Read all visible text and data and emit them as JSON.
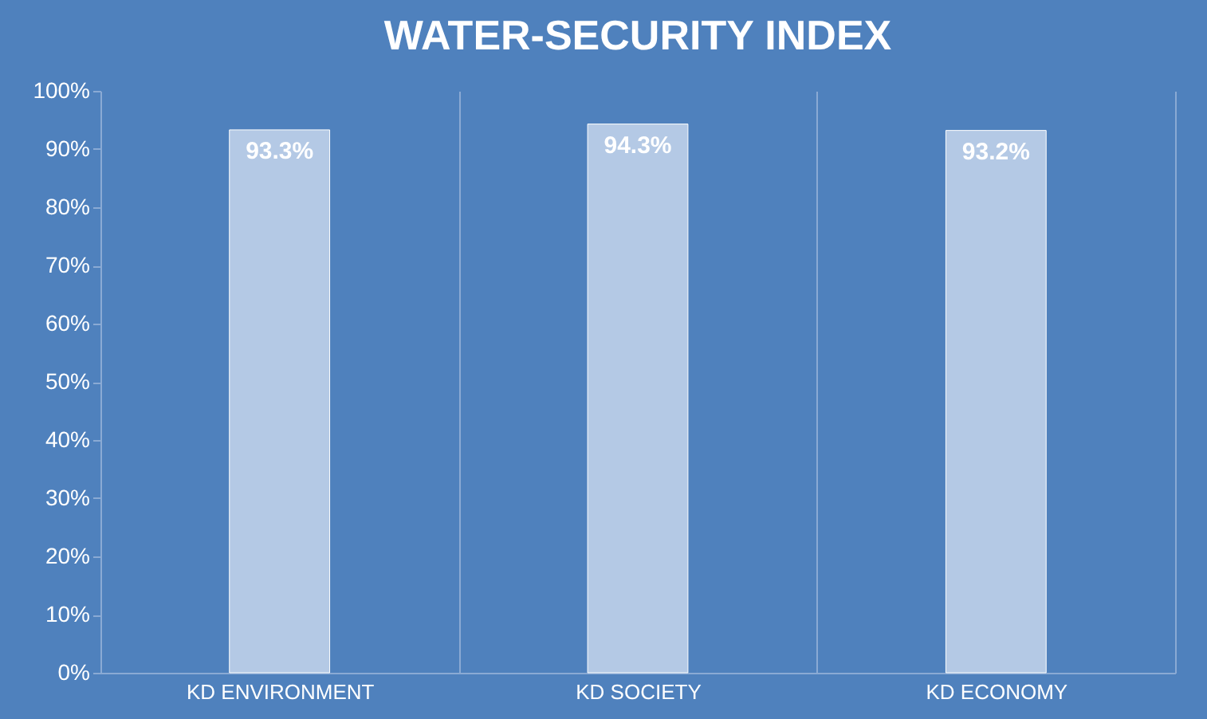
{
  "chart_data": {
    "type": "bar",
    "title": "WATER-SECURITY INDEX",
    "categories": [
      "KD ENVIRONMENT",
      "KD SOCIETY",
      "KD ECONOMY"
    ],
    "values": [
      93.3,
      94.3,
      93.2
    ],
    "value_labels": [
      "93.3%",
      "94.3%",
      "93.2%"
    ],
    "color": "#b4c9e5",
    "ylim": [
      0,
      100
    ],
    "yticks": [
      {
        "value": 0,
        "label": "0%"
      },
      {
        "value": 10,
        "label": "10%"
      },
      {
        "value": 20,
        "label": "20%"
      },
      {
        "value": 30,
        "label": "30%"
      },
      {
        "value": 40,
        "label": "40%"
      },
      {
        "value": 50,
        "label": "50%"
      },
      {
        "value": 60,
        "label": "60%"
      },
      {
        "value": 70,
        "label": "70%"
      },
      {
        "value": 80,
        "label": "80%"
      },
      {
        "value": 90,
        "label": "90%"
      },
      {
        "value": 100,
        "label": "100%"
      }
    ],
    "grid": "x"
  }
}
